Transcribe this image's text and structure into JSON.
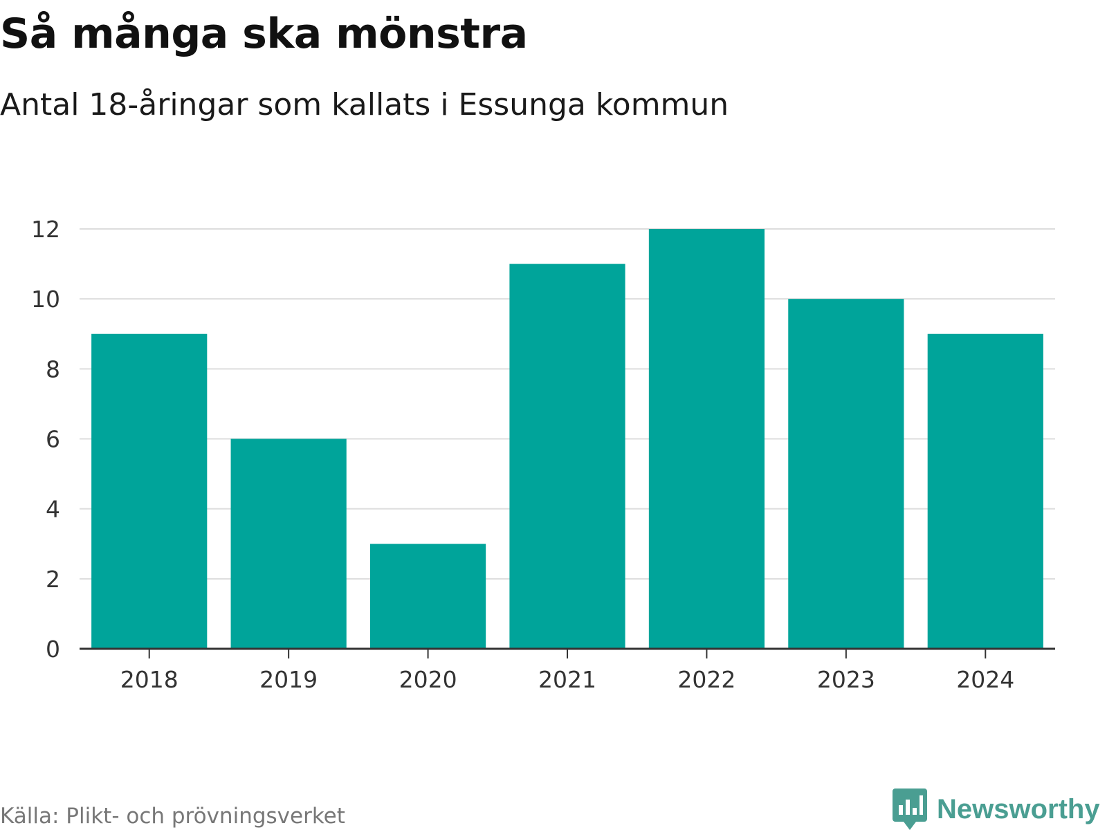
{
  "header": {
    "title": "Så många ska mönstra",
    "subtitle": "Antal 18-åringar som kallats i Essunga kommun"
  },
  "footer": {
    "source": "Källa: Plikt- och prövningsverket",
    "brand": "Newsworthy"
  },
  "colors": {
    "bar": "#00a49a",
    "grid": "#dddddd",
    "axis": "#333333",
    "brand": "#4a9e92"
  },
  "chart_data": {
    "type": "bar",
    "title": "Så många ska mönstra",
    "subtitle": "Antal 18-åringar som kallats i Essunga kommun",
    "xlabel": "",
    "ylabel": "",
    "categories": [
      "2018",
      "2019",
      "2020",
      "2021",
      "2022",
      "2023",
      "2024"
    ],
    "values": [
      9,
      6,
      3,
      11,
      12,
      10,
      9
    ],
    "ylim": [
      0,
      12
    ],
    "yticks": [
      0,
      2,
      4,
      6,
      8,
      10,
      12
    ],
    "grid": true,
    "legend": "none"
  }
}
